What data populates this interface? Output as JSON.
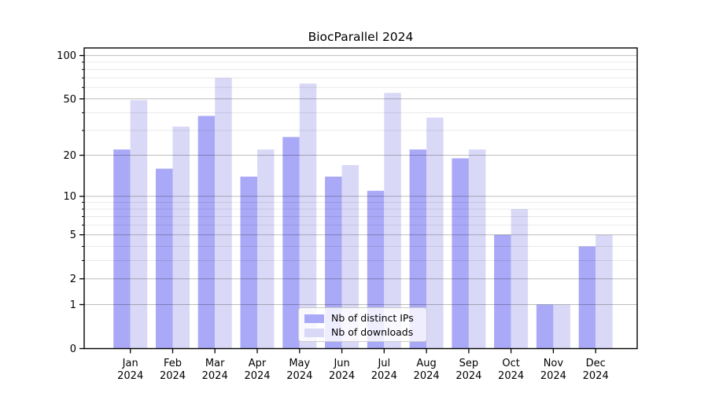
{
  "title": "BiocParallel 2024",
  "colors": {
    "ips_bar": "#a9a9f7",
    "downloads_bar": "#d9d9f7",
    "grid_major": "rgba(0,0,0,0.26)",
    "grid_minor": "rgba(0,0,0,0.09)",
    "axis": "#000000",
    "text": "#000000",
    "legend_border": "#cccccc"
  },
  "legend": {
    "items": [
      {
        "label": "Nb of distinct IPs",
        "color_key": "ips_bar"
      },
      {
        "label": "Nb of downloads",
        "color_key": "downloads_bar"
      }
    ]
  },
  "chart_data": {
    "type": "bar",
    "title": "BiocParallel 2024",
    "categories": [
      "Jan",
      "Feb",
      "Mar",
      "Apr",
      "May",
      "Jun",
      "Jul",
      "Aug",
      "Sep",
      "Oct",
      "Nov",
      "Dec"
    ],
    "year_label": "2024",
    "series": [
      {
        "name": "Nb of distinct IPs",
        "color_key": "ips_bar",
        "values": [
          22,
          16,
          38,
          14,
          27,
          14,
          11,
          22,
          19,
          5,
          1,
          4
        ]
      },
      {
        "name": "Nb of downloads",
        "color_key": "downloads_bar",
        "values": [
          49,
          32,
          70,
          22,
          64,
          17,
          55,
          37,
          22,
          8,
          1,
          5
        ]
      }
    ],
    "y_scale": "log1p",
    "y_ticks": [
      0,
      1,
      2,
      5,
      10,
      20,
      50,
      100
    ],
    "y_minor_ticks": [
      3,
      4,
      6,
      7,
      8,
      9,
      30,
      40,
      60,
      70,
      80,
      90
    ],
    "ylim": [
      0,
      113
    ],
    "xlabel": "",
    "ylabel": "",
    "grid": true,
    "legend_position": "lower-center"
  }
}
